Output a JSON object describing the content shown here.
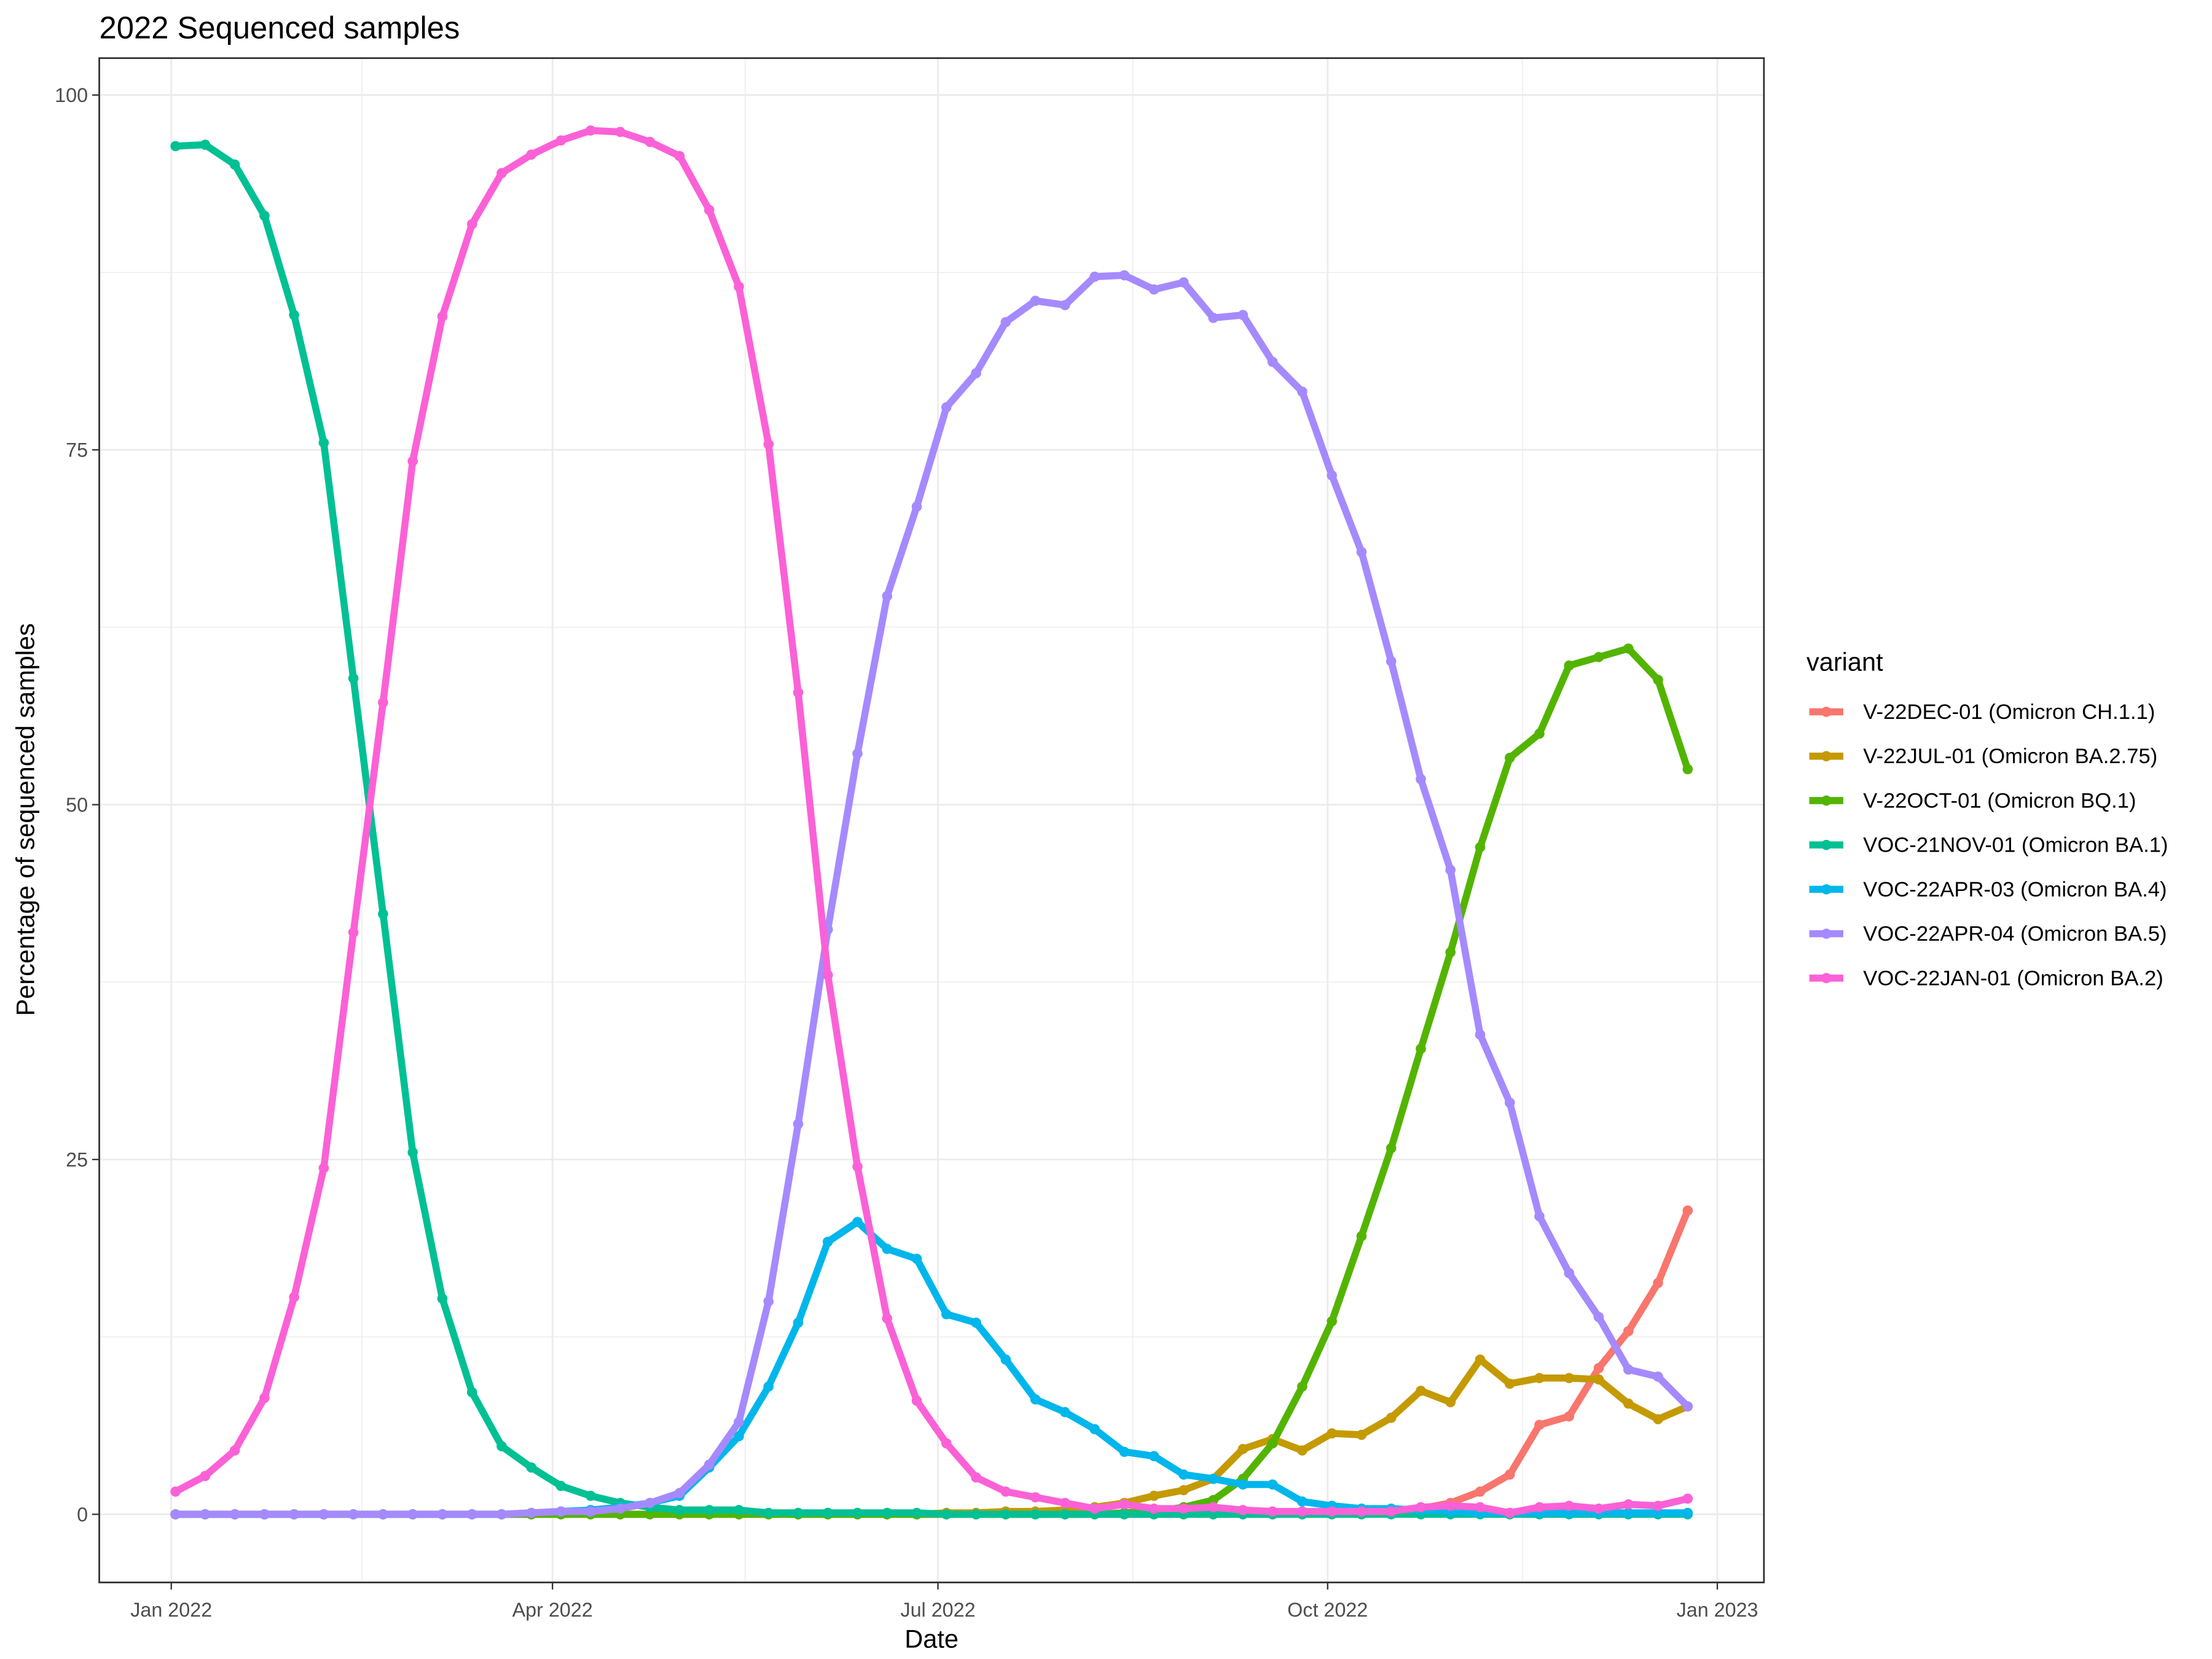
{
  "chart_data": {
    "type": "line",
    "title": "2022 Sequenced samples",
    "x_label": "Date",
    "y_label": "Percentage of sequenced samples",
    "legend_title": "variant",
    "legend_position": "right",
    "grid": true,
    "x": [
      "2022-01-02",
      "2022-01-09",
      "2022-01-16",
      "2022-01-23",
      "2022-01-30",
      "2022-02-06",
      "2022-02-13",
      "2022-02-20",
      "2022-02-27",
      "2022-03-06",
      "2022-03-13",
      "2022-03-20",
      "2022-03-27",
      "2022-04-03",
      "2022-04-10",
      "2022-04-17",
      "2022-04-24",
      "2022-05-01",
      "2022-05-08",
      "2022-05-15",
      "2022-05-22",
      "2022-05-29",
      "2022-06-05",
      "2022-06-12",
      "2022-06-19",
      "2022-06-26",
      "2022-07-03",
      "2022-07-10",
      "2022-07-17",
      "2022-07-24",
      "2022-07-31",
      "2022-08-07",
      "2022-08-14",
      "2022-08-21",
      "2022-08-28",
      "2022-09-04",
      "2022-09-11",
      "2022-09-18",
      "2022-09-25",
      "2022-10-02",
      "2022-10-09",
      "2022-10-16",
      "2022-10-23",
      "2022-10-30",
      "2022-11-06",
      "2022-11-13",
      "2022-11-20",
      "2022-11-27",
      "2022-12-04",
      "2022-12-11",
      "2022-12-18",
      "2022-12-25"
    ],
    "xlim": [
      "2021-12-15",
      "2023-01-12"
    ],
    "xticks": [
      {
        "value": "2022-01-01",
        "label": "Jan 2022"
      },
      {
        "value": "2022-04-01",
        "label": "Apr 2022"
      },
      {
        "value": "2022-07-01",
        "label": "Jul 2022"
      },
      {
        "value": "2022-10-01",
        "label": "Oct 2022"
      },
      {
        "value": "2023-01-01",
        "label": "Jan 2023"
      }
    ],
    "ylim": [
      -4.8,
      102.6
    ],
    "yticks": [
      0,
      25,
      50,
      75,
      100
    ],
    "series": [
      {
        "name": "V-22DEC-01 (Omicron CH.1.1)",
        "color": "#F8766D",
        "values": [
          0,
          0,
          0,
          0,
          0,
          0,
          0,
          0,
          0,
          0,
          0,
          0,
          0,
          0,
          0,
          0,
          0,
          0,
          0,
          0,
          0,
          0,
          0,
          0,
          0,
          0,
          0,
          0,
          0,
          0,
          0,
          0,
          0,
          0,
          0,
          0,
          0,
          0,
          0,
          0,
          0,
          0.2,
          0.4,
          0.8,
          1.6,
          2.8,
          6.3,
          6.9,
          10.3,
          12.9,
          16.3,
          21.4
        ]
      },
      {
        "name": "V-22JUL-01 (Omicron BA.2.75)",
        "color": "#C49A00",
        "values": [
          0,
          0,
          0,
          0,
          0,
          0,
          0,
          0,
          0,
          0,
          0,
          0,
          0,
          0,
          0,
          0,
          0,
          0,
          0,
          0,
          0,
          0,
          0,
          0,
          0,
          0,
          0.1,
          0.1,
          0.2,
          0.2,
          0.3,
          0.5,
          0.8,
          1.3,
          1.7,
          2.5,
          4.6,
          5.3,
          4.5,
          5.7,
          5.6,
          6.8,
          8.7,
          7.9,
          10.9,
          9.2,
          9.6,
          9.6,
          9.5,
          7.8,
          6.7,
          7.6
        ]
      },
      {
        "name": "V-22OCT-01 (Omicron BQ.1)",
        "color": "#53B400",
        "values": [
          0,
          0,
          0,
          0,
          0,
          0,
          0,
          0,
          0,
          0,
          0,
          0,
          0,
          0,
          0,
          0,
          0,
          0,
          0,
          0,
          0,
          0,
          0,
          0,
          0,
          0,
          0,
          0,
          0,
          0,
          0,
          0,
          0.1,
          0.2,
          0.5,
          1,
          2.5,
          5,
          9,
          13.6,
          19.6,
          25.8,
          32.8,
          39.6,
          47,
          53.3,
          55,
          59.8,
          60.4,
          61,
          58.8,
          52.5
        ]
      },
      {
        "name": "VOC-21NOV-01 (Omicron BA.1)",
        "color": "#00C094",
        "values": [
          96.4,
          96.5,
          95.1,
          91.5,
          84.5,
          75.5,
          58.9,
          42.3,
          25.5,
          15.2,
          8.6,
          4.8,
          3.3,
          2,
          1.3,
          0.8,
          0.5,
          0.3,
          0.3,
          0.3,
          0.1,
          0.1,
          0.1,
          0.1,
          0.1,
          0.1,
          0,
          0,
          0,
          0,
          0,
          0,
          0,
          0,
          0,
          0,
          0,
          0,
          0,
          0,
          0,
          0,
          0,
          0,
          0,
          0,
          0,
          0,
          0,
          0,
          0,
          0
        ]
      },
      {
        "name": "VOC-22APR-03 (Omicron BA.4)",
        "color": "#00B6EB",
        "values": [
          0,
          0,
          0,
          0,
          0,
          0,
          0,
          0,
          0,
          0,
          0,
          0,
          0.1,
          0.2,
          0.3,
          0.5,
          0.8,
          1.3,
          3.3,
          5.5,
          9,
          13.5,
          19.2,
          20.6,
          18.7,
          18,
          14.1,
          13.5,
          10.9,
          8.1,
          7.2,
          6,
          4.4,
          4.1,
          2.8,
          2.5,
          2.1,
          2.1,
          0.9,
          0.6,
          0.4,
          0.4,
          0.3,
          0.2,
          0.1,
          0.1,
          0.1,
          0.1,
          0.1,
          0.1,
          0.1,
          0.1
        ]
      },
      {
        "name": "VOC-22APR-04 (Omicron BA.5)",
        "color": "#A58AFF",
        "values": [
          0,
          0,
          0,
          0,
          0,
          0,
          0,
          0,
          0,
          0,
          0,
          0,
          0.1,
          0.2,
          0.2,
          0.4,
          0.8,
          1.5,
          3.5,
          6.5,
          15,
          27.5,
          41.2,
          53.6,
          64.7,
          71,
          78,
          80.4,
          84,
          85.5,
          85.2,
          87.2,
          87.3,
          86.3,
          86.8,
          84.3,
          84.5,
          81.2,
          79.1,
          73.2,
          67.8,
          60.1,
          51.8,
          45.4,
          33.8,
          29,
          21,
          17,
          13.9,
          10.2,
          9.7,
          7.6
        ]
      },
      {
        "name": "VOC-22JAN-01 (Omicron BA.2)",
        "color": "#FB61D7",
        "values": [
          1.6,
          2.7,
          4.5,
          8.2,
          15.3,
          24.4,
          41,
          57.2,
          74.2,
          84.4,
          90.9,
          94.5,
          95.8,
          96.8,
          97.5,
          97.4,
          96.7,
          95.7,
          91.9,
          86.5,
          75.4,
          57.9,
          38,
          24.5,
          13.8,
          8,
          5,
          2.6,
          1.6,
          1.2,
          0.8,
          0.4,
          0.7,
          0.4,
          0.4,
          0.5,
          0.3,
          0.2,
          0.2,
          0.2,
          0.2,
          0.2,
          0.5,
          0.6,
          0.5,
          0.1,
          0.5,
          0.6,
          0.4,
          0.7,
          0.6,
          1.1
        ]
      }
    ]
  }
}
